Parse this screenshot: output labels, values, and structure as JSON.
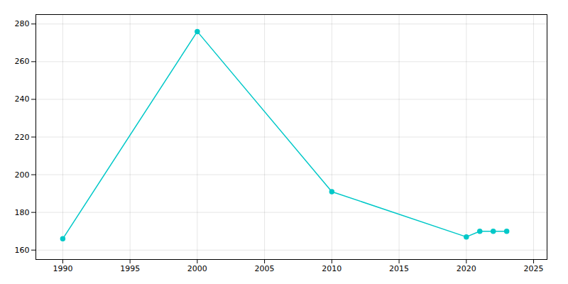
{
  "chart_data": {
    "type": "line",
    "x": [
      1990,
      2000,
      2010,
      2020,
      2021,
      2022,
      2023
    ],
    "values": [
      166,
      276,
      191,
      167,
      170,
      170,
      170
    ],
    "color": "#00C8C8",
    "marker": "circle",
    "xlim": [
      1988,
      2026
    ],
    "ylim": [
      155,
      285
    ],
    "xticks": [
      1990,
      1995,
      2000,
      2005,
      2010,
      2015,
      2020,
      2025
    ],
    "yticks": [
      160,
      180,
      200,
      220,
      240,
      260,
      280
    ],
    "grid": true
  }
}
